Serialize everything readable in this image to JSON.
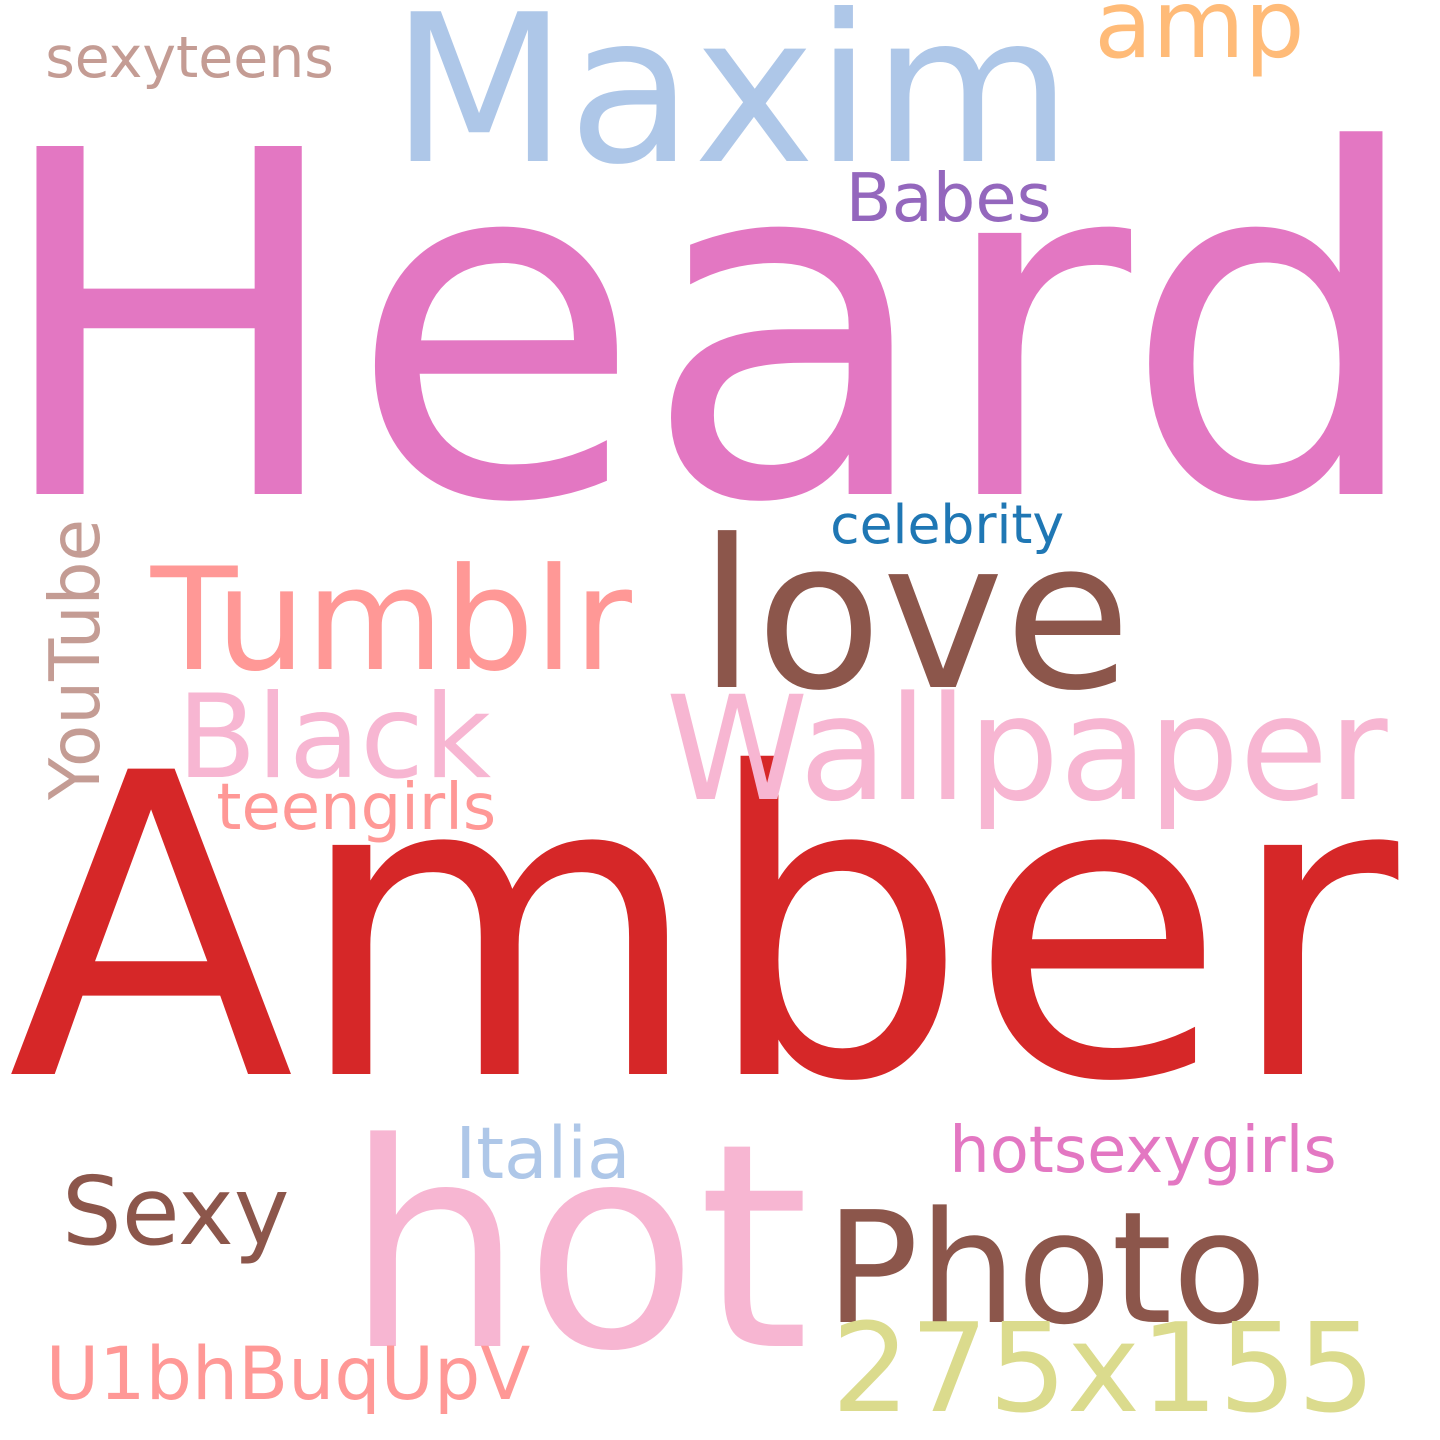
{
  "words": [
    {
      "key": "heard",
      "text": "Heard",
      "color": "#e377c2"
    },
    {
      "key": "amber",
      "text": "Amber",
      "color": "#d62728"
    },
    {
      "key": "maxim",
      "text": "Maxim",
      "color": "#aec7e8"
    },
    {
      "key": "amp",
      "text": "amp",
      "color": "#ffbb78"
    },
    {
      "key": "sexyteens",
      "text": "sexyteens",
      "color": "#c49c94"
    },
    {
      "key": "babes",
      "text": "Babes",
      "color": "#9467bd"
    },
    {
      "key": "celebrity",
      "text": "celebrity",
      "color": "#1f77b4"
    },
    {
      "key": "love",
      "text": "love",
      "color": "#8c564b"
    },
    {
      "key": "tumblr",
      "text": "Tumblr",
      "color": "#ff9896"
    },
    {
      "key": "black",
      "text": "Black",
      "color": "#f7b6d2"
    },
    {
      "key": "wallpaper",
      "text": "Wallpaper",
      "color": "#f7b6d2"
    },
    {
      "key": "youtube",
      "text": "YouTube",
      "color": "#c49c94"
    },
    {
      "key": "teengirls",
      "text": "teengirls",
      "color": "#ff9896"
    },
    {
      "key": "italia",
      "text": "Italia",
      "color": "#aec7e8"
    },
    {
      "key": "hotsexygirls",
      "text": "hotsexygirls",
      "color": "#e377c2"
    },
    {
      "key": "sexy",
      "text": "Sexy",
      "color": "#8c564b"
    },
    {
      "key": "hot",
      "text": "hot",
      "color": "#f7b6d2"
    },
    {
      "key": "photo",
      "text": "Photo",
      "color": "#8c564b"
    },
    {
      "key": "res",
      "text": "275x155",
      "color": "#dbdb8d"
    },
    {
      "key": "code",
      "text": "U1bhBuqUpV",
      "color": "#ff9896"
    }
  ]
}
